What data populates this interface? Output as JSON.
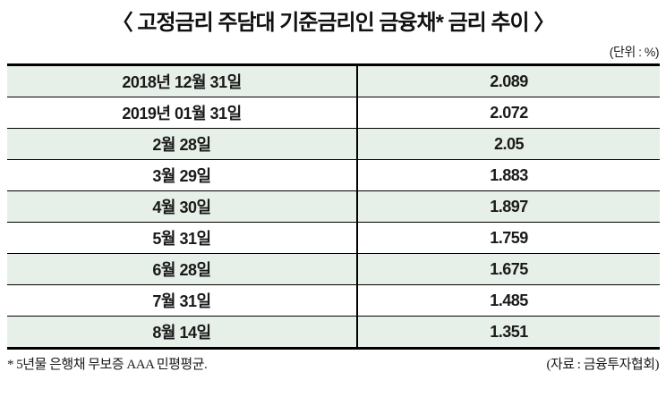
{
  "title": "〈 고정금리 주담대 기준금리인 금융채* 금리 추이 〉",
  "unit_label": "(단위 : %)",
  "footnote": "* 5년물 은행채 무보증 AAA 민평평균.",
  "source": "(자료 : 금융투자협회)",
  "colors": {
    "row_alt_green": "#e7f0e8",
    "border": "#000000",
    "text": "#1a1a1a"
  },
  "table": {
    "rows": [
      {
        "date": "2018년 12월 31일",
        "rate": "2.089"
      },
      {
        "date": "2019년 01월 31일",
        "rate": "2.072"
      },
      {
        "date": "2월 28일",
        "rate": "2.05"
      },
      {
        "date": "3월 29일",
        "rate": "1.883"
      },
      {
        "date": "4월 30일",
        "rate": "1.897"
      },
      {
        "date": "5월 31일",
        "rate": "1.759"
      },
      {
        "date": "6월 28일",
        "rate": "1.675"
      },
      {
        "date": "7월 31일",
        "rate": "1.485"
      },
      {
        "date": "8월 14일",
        "rate": "1.351"
      }
    ]
  },
  "chart_data": {
    "type": "table",
    "title": "〈 고정금리 주담대 기준금리인 금융채* 금리 추이 〉",
    "unit": "%",
    "columns": [
      "date",
      "rate_pct"
    ],
    "rows": [
      [
        "2018년 12월 31일",
        2.089
      ],
      [
        "2019년 01월 31일",
        2.072
      ],
      [
        "2월 28일",
        2.05
      ],
      [
        "3월 29일",
        1.883
      ],
      [
        "4월 30일",
        1.897
      ],
      [
        "5월 31일",
        1.759
      ],
      [
        "6월 28일",
        1.675
      ],
      [
        "7월 31일",
        1.485
      ],
      [
        "8월 14일",
        1.351
      ]
    ],
    "footnote": "* 5년물 은행채 무보증 AAA 민평평균.",
    "source": "(자료 : 금융투자협회)",
    "layout": {
      "alternating_row_fill": "#e7f0e8",
      "thick_rule_top_bottom": true,
      "column_divider": true
    }
  }
}
